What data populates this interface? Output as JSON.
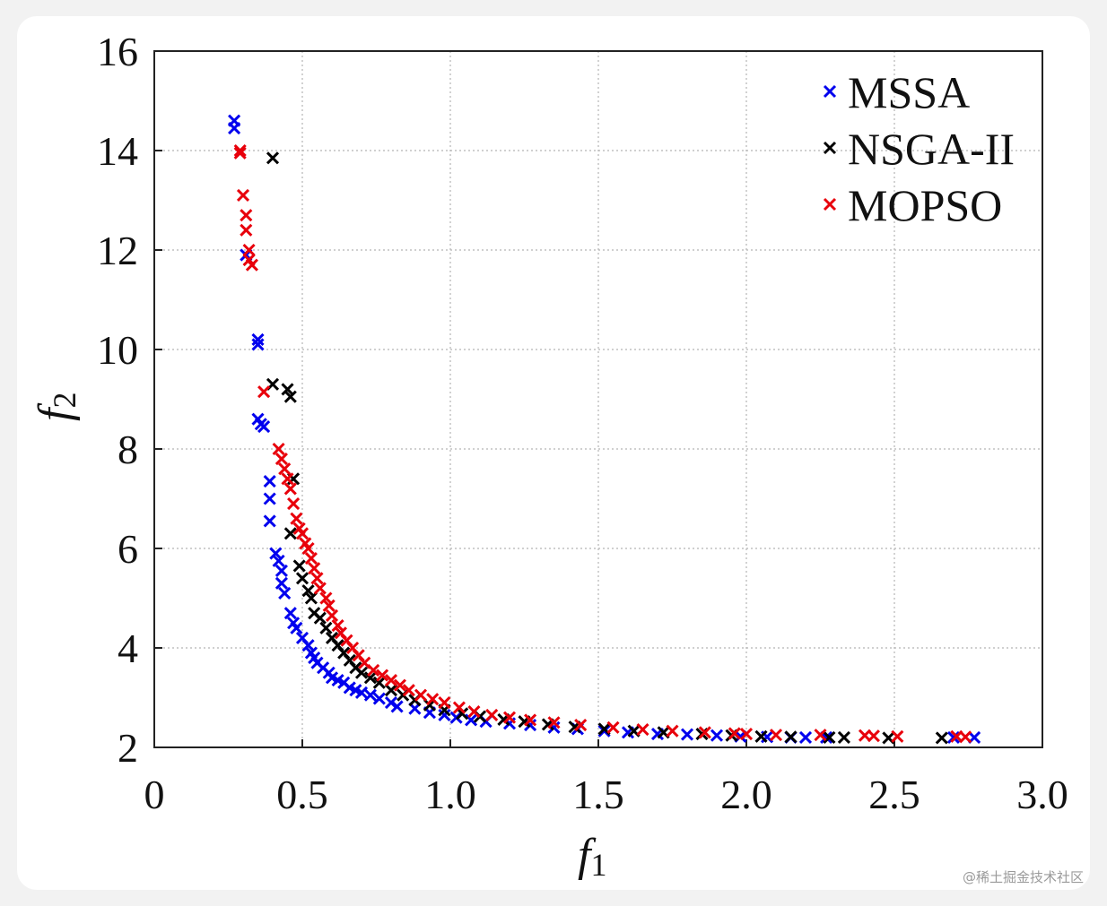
{
  "chart_data": {
    "type": "scatter",
    "title": "",
    "xlabel": "f",
    "xlabel_sub": "1",
    "ylabel": "f",
    "ylabel_sub": "2",
    "xlim": [
      0,
      3.0
    ],
    "ylim": [
      2,
      16
    ],
    "xticks": [
      0,
      0.5,
      1.0,
      1.5,
      2.0,
      2.5,
      3.0
    ],
    "xtick_labels": [
      "0",
      "0.5",
      "1.0",
      "1.5",
      "2.0",
      "2.5",
      "3.0"
    ],
    "yticks": [
      2,
      4,
      6,
      8,
      10,
      12,
      14,
      16
    ],
    "ytick_labels": [
      "2",
      "4",
      "6",
      "8",
      "10",
      "12",
      "14",
      "16"
    ],
    "grid": true,
    "legend_position": "top-right",
    "marker": "x",
    "series": [
      {
        "name": "MSSA",
        "color": "#0000ee",
        "points": [
          [
            0.27,
            14.6
          ],
          [
            0.27,
            14.45
          ],
          [
            0.31,
            11.9
          ],
          [
            0.35,
            10.2
          ],
          [
            0.35,
            10.1
          ],
          [
            0.35,
            8.6
          ],
          [
            0.36,
            8.5
          ],
          [
            0.37,
            8.45
          ],
          [
            0.39,
            7.35
          ],
          [
            0.39,
            7.0
          ],
          [
            0.39,
            6.55
          ],
          [
            0.41,
            5.9
          ],
          [
            0.42,
            5.75
          ],
          [
            0.43,
            5.55
          ],
          [
            0.43,
            5.3
          ],
          [
            0.44,
            5.1
          ],
          [
            0.46,
            4.7
          ],
          [
            0.47,
            4.5
          ],
          [
            0.48,
            4.4
          ],
          [
            0.5,
            4.2
          ],
          [
            0.52,
            4.05
          ],
          [
            0.53,
            3.9
          ],
          [
            0.54,
            3.8
          ],
          [
            0.55,
            3.7
          ],
          [
            0.57,
            3.6
          ],
          [
            0.59,
            3.5
          ],
          [
            0.6,
            3.4
          ],
          [
            0.62,
            3.35
          ],
          [
            0.64,
            3.3
          ],
          [
            0.66,
            3.2
          ],
          [
            0.68,
            3.15
          ],
          [
            0.7,
            3.1
          ],
          [
            0.73,
            3.05
          ],
          [
            0.76,
            2.98
          ],
          [
            0.8,
            2.9
          ],
          [
            0.82,
            2.82
          ],
          [
            0.88,
            2.78
          ],
          [
            0.93,
            2.7
          ],
          [
            0.98,
            2.65
          ],
          [
            1.02,
            2.6
          ],
          [
            1.07,
            2.55
          ],
          [
            1.12,
            2.52
          ],
          [
            1.2,
            2.48
          ],
          [
            1.27,
            2.45
          ],
          [
            1.35,
            2.4
          ],
          [
            1.43,
            2.37
          ],
          [
            1.52,
            2.33
          ],
          [
            1.6,
            2.3
          ],
          [
            1.7,
            2.27
          ],
          [
            1.8,
            2.26
          ],
          [
            1.9,
            2.24
          ],
          [
            1.98,
            2.22
          ],
          [
            2.07,
            2.21
          ],
          [
            2.15,
            2.2
          ],
          [
            2.2,
            2.2
          ],
          [
            2.27,
            2.2
          ],
          [
            2.7,
            2.2
          ],
          [
            2.77,
            2.2
          ]
        ]
      },
      {
        "name": "NSGA-II",
        "color": "#000000",
        "points": [
          [
            0.4,
            13.85
          ],
          [
            0.4,
            9.3
          ],
          [
            0.45,
            9.2
          ],
          [
            0.46,
            9.05
          ],
          [
            0.47,
            7.4
          ],
          [
            0.46,
            6.3
          ],
          [
            0.49,
            5.65
          ],
          [
            0.5,
            5.4
          ],
          [
            0.52,
            5.15
          ],
          [
            0.53,
            5.0
          ],
          [
            0.54,
            4.7
          ],
          [
            0.56,
            4.6
          ],
          [
            0.58,
            4.4
          ],
          [
            0.6,
            4.2
          ],
          [
            0.62,
            4.05
          ],
          [
            0.64,
            3.9
          ],
          [
            0.66,
            3.75
          ],
          [
            0.68,
            3.6
          ],
          [
            0.7,
            3.5
          ],
          [
            0.73,
            3.4
          ],
          [
            0.76,
            3.3
          ],
          [
            0.8,
            3.15
          ],
          [
            0.84,
            3.05
          ],
          [
            0.88,
            2.95
          ],
          [
            0.93,
            2.85
          ],
          [
            0.98,
            2.75
          ],
          [
            1.04,
            2.68
          ],
          [
            1.1,
            2.62
          ],
          [
            1.18,
            2.56
          ],
          [
            1.25,
            2.52
          ],
          [
            1.33,
            2.46
          ],
          [
            1.42,
            2.41
          ],
          [
            1.52,
            2.37
          ],
          [
            1.62,
            2.33
          ],
          [
            1.72,
            2.3
          ],
          [
            1.85,
            2.27
          ],
          [
            1.95,
            2.24
          ],
          [
            2.05,
            2.22
          ],
          [
            2.15,
            2.21
          ],
          [
            2.28,
            2.2
          ],
          [
            2.33,
            2.2
          ],
          [
            2.48,
            2.19
          ],
          [
            2.66,
            2.19
          ]
        ]
      },
      {
        "name": "MOPSO",
        "color": "#e8000b",
        "points": [
          [
            0.29,
            14.0
          ],
          [
            0.29,
            13.95
          ],
          [
            0.3,
            13.1
          ],
          [
            0.31,
            12.7
          ],
          [
            0.31,
            12.4
          ],
          [
            0.32,
            12.0
          ],
          [
            0.32,
            11.8
          ],
          [
            0.33,
            11.7
          ],
          [
            0.37,
            9.15
          ],
          [
            0.42,
            8.0
          ],
          [
            0.43,
            7.8
          ],
          [
            0.44,
            7.6
          ],
          [
            0.45,
            7.4
          ],
          [
            0.46,
            7.2
          ],
          [
            0.47,
            6.9
          ],
          [
            0.48,
            6.6
          ],
          [
            0.49,
            6.4
          ],
          [
            0.5,
            6.3
          ],
          [
            0.51,
            6.1
          ],
          [
            0.52,
            6.0
          ],
          [
            0.53,
            5.8
          ],
          [
            0.54,
            5.6
          ],
          [
            0.55,
            5.4
          ],
          [
            0.56,
            5.2
          ],
          [
            0.58,
            5.0
          ],
          [
            0.59,
            4.85
          ],
          [
            0.6,
            4.65
          ],
          [
            0.62,
            4.45
          ],
          [
            0.63,
            4.3
          ],
          [
            0.65,
            4.15
          ],
          [
            0.67,
            4.0
          ],
          [
            0.69,
            3.85
          ],
          [
            0.71,
            3.7
          ],
          [
            0.74,
            3.55
          ],
          [
            0.77,
            3.45
          ],
          [
            0.8,
            3.35
          ],
          [
            0.83,
            3.25
          ],
          [
            0.86,
            3.15
          ],
          [
            0.9,
            3.05
          ],
          [
            0.94,
            2.97
          ],
          [
            0.98,
            2.9
          ],
          [
            1.03,
            2.8
          ],
          [
            1.08,
            2.72
          ],
          [
            1.14,
            2.65
          ],
          [
            1.2,
            2.6
          ],
          [
            1.27,
            2.55
          ],
          [
            1.35,
            2.5
          ],
          [
            1.44,
            2.45
          ],
          [
            1.55,
            2.4
          ],
          [
            1.65,
            2.36
          ],
          [
            1.75,
            2.33
          ],
          [
            1.86,
            2.3
          ],
          [
            1.96,
            2.28
          ],
          [
            2.0,
            2.27
          ],
          [
            2.1,
            2.25
          ],
          [
            2.25,
            2.25
          ],
          [
            2.4,
            2.24
          ],
          [
            2.43,
            2.23
          ],
          [
            2.51,
            2.22
          ],
          [
            2.71,
            2.22
          ],
          [
            2.74,
            2.21
          ]
        ]
      }
    ]
  },
  "watermark": "@稀土掘金技术社区"
}
